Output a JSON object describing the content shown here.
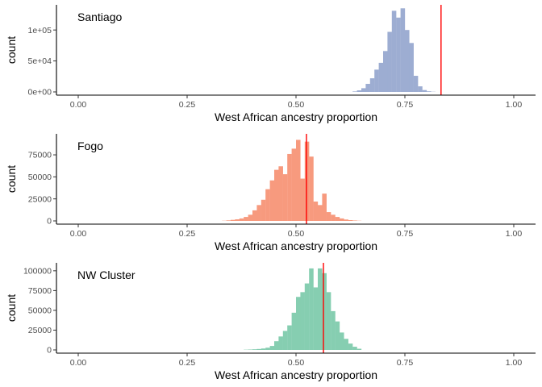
{
  "chart_data": [
    {
      "type": "bar",
      "panel_label": "Santiago",
      "xlabel": "West African ancestry proportion",
      "ylabel": "count",
      "xlim": [
        -0.05,
        1.05
      ],
      "ylim": [
        0,
        138000
      ],
      "x_ticks": [
        0.0,
        0.25,
        0.5,
        0.75,
        1.0
      ],
      "x_tick_labels": [
        "0.00",
        "0.25",
        "0.50",
        "0.75",
        "1.00"
      ],
      "y_ticks": [
        0,
        50000,
        100000
      ],
      "y_tick_labels": [
        "0e+00",
        "5e+04",
        "1e+05"
      ],
      "bin_width": 0.01,
      "bin_starts": [
        0.63,
        0.64,
        0.65,
        0.66,
        0.67,
        0.68,
        0.69,
        0.7,
        0.71,
        0.72,
        0.73,
        0.74,
        0.75,
        0.76,
        0.77,
        0.78,
        0.79,
        0.8,
        0.81
      ],
      "counts": [
        800,
        2500,
        6000,
        13000,
        22000,
        36000,
        47000,
        66000,
        97000,
        131000,
        120000,
        135000,
        100000,
        79000,
        26000,
        9000,
        3000,
        1000,
        300
      ],
      "fill": "#9DADD2",
      "reference_line": {
        "x": 0.833,
        "color": "#FF0000"
      },
      "grid": false
    },
    {
      "type": "bar",
      "panel_label": "Fogo",
      "xlabel": "West African ancestry proportion",
      "ylabel": "count",
      "xlim": [
        -0.05,
        1.05
      ],
      "ylim": [
        0,
        97000
      ],
      "x_ticks": [
        0.0,
        0.25,
        0.5,
        0.75,
        1.0
      ],
      "x_tick_labels": [
        "0.00",
        "0.25",
        "0.50",
        "0.75",
        "1.00"
      ],
      "y_ticks": [
        0,
        25000,
        50000,
        75000
      ],
      "y_tick_labels": [
        "0",
        "25000",
        "50000",
        "75000"
      ],
      "bin_width": 0.01,
      "bin_starts": [
        0.33,
        0.34,
        0.35,
        0.36,
        0.37,
        0.38,
        0.39,
        0.4,
        0.41,
        0.42,
        0.43,
        0.44,
        0.45,
        0.46,
        0.47,
        0.48,
        0.49,
        0.5,
        0.51,
        0.52,
        0.53,
        0.54,
        0.55,
        0.56,
        0.57,
        0.58,
        0.59,
        0.6,
        0.61,
        0.62,
        0.63,
        0.64
      ],
      "counts": [
        200,
        600,
        1200,
        1800,
        2800,
        4500,
        7000,
        12000,
        18000,
        24000,
        36000,
        46000,
        58000,
        62000,
        53000,
        76000,
        82000,
        92000,
        48000,
        90000,
        73000,
        22000,
        18000,
        31000,
        10000,
        7000,
        4500,
        2800,
        1600,
        900,
        500,
        200
      ],
      "fill": "#F79A7E",
      "reference_line": {
        "x": 0.524,
        "color": "#FF0000"
      },
      "grid": false
    },
    {
      "type": "bar",
      "panel_label": "NW Cluster",
      "xlabel": "West African ancestry proportion",
      "ylabel": "count",
      "xlim": [
        -0.05,
        1.05
      ],
      "ylim": [
        0,
        108000
      ],
      "x_ticks": [
        0.0,
        0.25,
        0.5,
        0.75,
        1.0
      ],
      "x_tick_labels": [
        "0.00",
        "0.25",
        "0.50",
        "0.75",
        "1.00"
      ],
      "y_ticks": [
        0,
        25000,
        50000,
        75000,
        100000
      ],
      "y_tick_labels": [
        "0",
        "25000",
        "50000",
        "75000",
        "100000"
      ],
      "bin_width": 0.01,
      "bin_starts": [
        0.38,
        0.39,
        0.4,
        0.41,
        0.42,
        0.43,
        0.44,
        0.45,
        0.46,
        0.47,
        0.48,
        0.49,
        0.5,
        0.51,
        0.52,
        0.53,
        0.54,
        0.55,
        0.56,
        0.57,
        0.58,
        0.59,
        0.6,
        0.61,
        0.62,
        0.63,
        0.64
      ],
      "counts": [
        300,
        500,
        800,
        1200,
        1800,
        2800,
        5000,
        11000,
        17000,
        24000,
        31000,
        47000,
        67000,
        73000,
        84000,
        103000,
        79000,
        103000,
        97000,
        73000,
        49000,
        36000,
        22000,
        14000,
        8000,
        4000,
        1500
      ],
      "fill": "#86CEB1",
      "reference_line": {
        "x": 0.563,
        "color": "#FF0000"
      },
      "grid": false
    }
  ]
}
